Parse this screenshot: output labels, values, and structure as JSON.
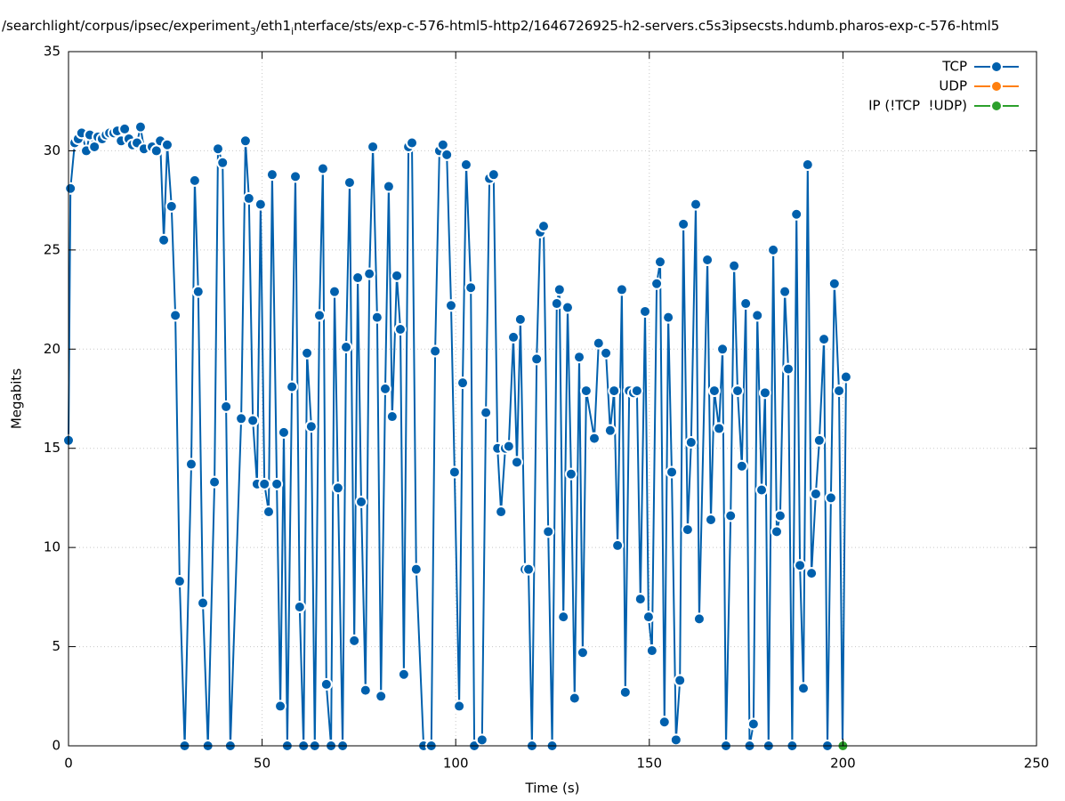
{
  "chart_data": {
    "type": "line",
    "title_parts": [
      {
        "text": "/searchlight/corpus/ipsec/experiment",
        "sub": false
      },
      {
        "text": "3",
        "sub": true
      },
      {
        "text": "/eth1",
        "sub": false
      },
      {
        "text": "i",
        "sub": true
      },
      {
        "text": "nterface/sts/exp-c-576-html5-http2/1646726925-h2-servers.c5s3ipsecsts.hdumb.pharos-exp-c-576-html5",
        "sub": false
      }
    ],
    "xlabel": "Time (s)",
    "ylabel": "Megabits",
    "xlim": [
      0,
      250
    ],
    "xticks": [
      0,
      50,
      100,
      150,
      200,
      250
    ],
    "ylim": [
      0,
      35
    ],
    "yticks": [
      0,
      5,
      10,
      15,
      20,
      25,
      30,
      35
    ],
    "grid": true,
    "legend": "top-right",
    "series": [
      {
        "name": "TCP",
        "color": "#0060ad",
        "x": [
          0,
          0.5,
          1.6,
          2.5,
          3.4,
          4.6,
          5.5,
          6.7,
          7.6,
          8.7,
          9.7,
          10.6,
          11.7,
          12.6,
          13.6,
          14.5,
          15.6,
          16.5,
          17.7,
          18.6,
          19.5,
          21.6,
          22.7,
          23.7,
          24.6,
          25.5,
          26.6,
          27.6,
          28.7,
          30,
          31.7,
          32.6,
          33.5,
          34.7,
          36,
          37.7,
          38.6,
          39.8,
          40.7,
          41.8,
          44.6,
          45.7,
          46.6,
          47.6,
          48.7,
          49.6,
          50.6,
          51.7,
          52.6,
          53.8,
          54.7,
          55.6,
          56.5,
          57.7,
          58.6,
          59.7,
          60.7,
          61.6,
          62.7,
          63.6,
          64.8,
          65.7,
          66.6,
          67.8,
          68.7,
          69.6,
          70.8,
          71.7,
          72.6,
          73.8,
          74.7,
          75.6,
          76.7,
          77.7,
          78.6,
          79.7,
          80.7,
          81.8,
          82.7,
          83.6,
          84.8,
          85.7,
          86.6,
          87.8,
          88.7,
          89.8,
          91.7,
          93.7,
          94.7,
          95.8,
          96.7,
          97.7,
          98.8,
          99.7,
          100.9,
          101.8,
          102.7,
          103.9,
          104.8,
          106.8,
          107.8,
          108.7,
          109.8,
          110.8,
          111.7,
          112.8,
          113.7,
          114.9,
          115.8,
          116.7,
          117.9,
          118.8,
          119.7,
          120.9,
          121.8,
          122.7,
          123.9,
          124.9,
          126.1,
          126.8,
          127.8,
          128.9,
          129.8,
          130.7,
          131.9,
          132.8,
          133.7,
          135.8,
          136.9,
          138.8,
          139.9,
          140.9,
          141.8,
          142.9,
          143.8,
          144.8,
          145.9,
          146.8,
          147.7,
          148.9,
          149.8,
          150.7,
          151.9,
          152.8,
          153.9,
          154.9,
          155.8,
          156.9,
          157.9,
          158.8,
          159.9,
          160.8,
          162,
          162.9,
          165,
          165.9,
          166.8,
          168,
          168.9,
          169.8,
          171,
          171.9,
          172.8,
          173.9,
          174.9,
          175.9,
          176.9,
          177.9,
          179,
          179.9,
          180.8,
          182,
          182.9,
          183.8,
          185,
          185.9,
          186.9,
          188,
          188.9,
          189.8,
          190.9,
          191.9,
          193,
          193.9,
          195.1,
          196,
          196.9,
          197.8,
          199,
          199.9,
          200.8
        ],
        "values": [
          15.4,
          28.1,
          30.4,
          30.6,
          30.9,
          30.0,
          30.8,
          30.2,
          30.7,
          30.6,
          30.8,
          30.9,
          30.9,
          31.0,
          30.5,
          31.1,
          30.6,
          30.3,
          30.4,
          31.2,
          30.1,
          30.2,
          30.0,
          30.5,
          25.5,
          30.3,
          27.2,
          21.7,
          8.3,
          0,
          14.2,
          28.5,
          22.9,
          7.2,
          0,
          13.3,
          30.1,
          29.4,
          17.1,
          0,
          16.5,
          30.5,
          27.6,
          16.4,
          13.2,
          27.3,
          13.2,
          11.8,
          28.8,
          13.2,
          2.0,
          15.8,
          0,
          18.1,
          28.7,
          7.0,
          0,
          19.8,
          16.1,
          0,
          21.7,
          29.1,
          3.1,
          0,
          22.9,
          13.0,
          0,
          20.1,
          28.4,
          5.3,
          23.6,
          12.3,
          2.8,
          23.8,
          30.2,
          21.6,
          2.5,
          18.0,
          28.2,
          16.6,
          23.7,
          21.0,
          3.6,
          30.2,
          30.4,
          8.9,
          0,
          0,
          19.9,
          30.0,
          30.3,
          29.8,
          22.2,
          13.8,
          2.0,
          18.3,
          29.3,
          23.1,
          0,
          0.3,
          16.8,
          28.6,
          28.8,
          15.0,
          11.8,
          15.0,
          15.1,
          20.6,
          14.3,
          21.5,
          8.9,
          8.9,
          0,
          19.5,
          25.9,
          26.2,
          10.8,
          0,
          22.3,
          23.0,
          6.5,
          22.1,
          13.7,
          2.4,
          19.6,
          4.7,
          17.9,
          15.5,
          20.3,
          19.8,
          15.9,
          17.9,
          10.1,
          23.0,
          2.7,
          17.9,
          17.8,
          17.9,
          7.4,
          21.9,
          6.5,
          4.8,
          23.3,
          24.4,
          1.2,
          21.6,
          13.8,
          0.3,
          3.3,
          26.3,
          10.9,
          15.3,
          27.3,
          6.4,
          24.5,
          11.4,
          17.9,
          16.0,
          20.0,
          0,
          11.6,
          24.2,
          17.9,
          14.1,
          22.3,
          0,
          1.1,
          21.7,
          12.9,
          17.8,
          0,
          25.0,
          10.8,
          11.6,
          22.9,
          19.0,
          0,
          26.8,
          9.1,
          2.9,
          29.3,
          8.7,
          12.7,
          15.4,
          20.5,
          0,
          12.5,
          23.3,
          17.9,
          0,
          18.6
        ]
      },
      {
        "name": "UDP",
        "color": "#ff7f0e",
        "x": [],
        "values": []
      },
      {
        "name": "IP (!TCP  !UDP)",
        "color": "#2ca02c",
        "x": [
          200
        ],
        "values": [
          0
        ]
      }
    ]
  }
}
